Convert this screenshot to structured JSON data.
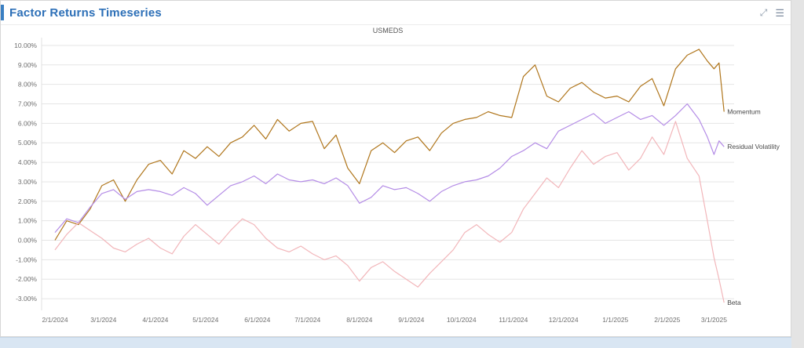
{
  "header": {
    "title": "Factor Returns Timeseries",
    "icons": [
      {
        "name": "expand-icon",
        "glyph": "⤢"
      },
      {
        "name": "menu-icon",
        "glyph": "☰"
      }
    ]
  },
  "colors": {
    "accent_blue": "#3a7fc2",
    "title_blue": "#2c6fb7",
    "grid": "#e5e5e5",
    "momentum": "#b0761c",
    "residual_volatility": "#b48ce6",
    "beta": "#f2b6ba"
  },
  "chart_data": {
    "type": "line",
    "title": "USMEDS",
    "xlabel": "",
    "ylabel": "",
    "grid": "horizontal",
    "legend_position": "line-end-labels",
    "ylim": [
      -3.6,
      10.4
    ],
    "x_unit": "days since 2/1/2024",
    "x_ticks": [
      {
        "day": 0,
        "label": "2/1/2024"
      },
      {
        "day": 29,
        "label": "3/1/2024"
      },
      {
        "day": 60,
        "label": "4/1/2024"
      },
      {
        "day": 90,
        "label": "5/1/2024"
      },
      {
        "day": 121,
        "label": "6/1/2024"
      },
      {
        "day": 151,
        "label": "7/1/2024"
      },
      {
        "day": 182,
        "label": "8/1/2024"
      },
      {
        "day": 213,
        "label": "9/1/2024"
      },
      {
        "day": 243,
        "label": "10/1/2024"
      },
      {
        "day": 274,
        "label": "11/1/2024"
      },
      {
        "day": 304,
        "label": "12/1/2024"
      },
      {
        "day": 335,
        "label": "1/1/2025"
      },
      {
        "day": 366,
        "label": "2/1/2025"
      },
      {
        "day": 394,
        "label": "3/1/2025"
      }
    ],
    "y_ticks": [
      {
        "value": 10,
        "label": "10.00%"
      },
      {
        "value": 9,
        "label": "9.00%"
      },
      {
        "value": 8,
        "label": "8.00%"
      },
      {
        "value": 7,
        "label": "7.00%"
      },
      {
        "value": 6,
        "label": "6.00%"
      },
      {
        "value": 5,
        "label": "5.00%"
      },
      {
        "value": 4,
        "label": "4.00%"
      },
      {
        "value": 3,
        "label": "3.00%"
      },
      {
        "value": 2,
        "label": "2.00%"
      },
      {
        "value": 1,
        "label": "1.00%"
      },
      {
        "value": 0,
        "label": "0.00%"
      },
      {
        "value": -1,
        "label": "-1.00%"
      },
      {
        "value": -2,
        "label": "-2.00%"
      },
      {
        "value": -3,
        "label": "-3.00%"
      }
    ],
    "x": [
      0,
      7,
      14,
      21,
      28,
      35,
      42,
      49,
      56,
      63,
      70,
      77,
      84,
      91,
      98,
      105,
      112,
      119,
      126,
      133,
      140,
      147,
      154,
      161,
      168,
      175,
      182,
      189,
      196,
      203,
      210,
      217,
      224,
      231,
      238,
      245,
      252,
      259,
      266,
      273,
      280,
      287,
      294,
      301,
      308,
      315,
      322,
      329,
      336,
      343,
      350,
      357,
      364,
      371,
      378,
      385,
      390,
      394,
      397,
      400
    ],
    "series": [
      {
        "name": "Momentum",
        "color": "#b0761c",
        "values": [
          0.0,
          1.0,
          0.8,
          1.6,
          2.8,
          3.1,
          2.0,
          3.1,
          3.9,
          4.1,
          3.4,
          4.6,
          4.2,
          4.8,
          4.3,
          5.0,
          5.3,
          5.9,
          5.2,
          6.2,
          5.6,
          6.0,
          6.1,
          4.7,
          5.4,
          3.7,
          2.9,
          4.6,
          5.0,
          4.5,
          5.1,
          5.3,
          4.6,
          5.5,
          6.0,
          6.2,
          6.3,
          6.6,
          6.4,
          6.3,
          8.4,
          9.0,
          7.4,
          7.1,
          7.8,
          8.1,
          7.6,
          7.3,
          7.4,
          7.1,
          7.9,
          8.3,
          6.9,
          8.8,
          9.5,
          9.8,
          9.2,
          8.8,
          9.1,
          6.6
        ]
      },
      {
        "name": "Residual Volatility",
        "color": "#b48ce6",
        "values": [
          0.4,
          1.1,
          0.9,
          1.7,
          2.4,
          2.6,
          2.1,
          2.5,
          2.6,
          2.5,
          2.3,
          2.7,
          2.4,
          1.8,
          2.3,
          2.8,
          3.0,
          3.3,
          2.9,
          3.4,
          3.1,
          3.0,
          3.1,
          2.9,
          3.2,
          2.8,
          1.9,
          2.2,
          2.8,
          2.6,
          2.7,
          2.4,
          2.0,
          2.5,
          2.8,
          3.0,
          3.1,
          3.3,
          3.7,
          4.3,
          4.6,
          5.0,
          4.7,
          5.6,
          5.9,
          6.2,
          6.5,
          6.0,
          6.3,
          6.6,
          6.2,
          6.4,
          5.9,
          6.4,
          7.0,
          6.2,
          5.3,
          4.4,
          5.1,
          4.8
        ]
      },
      {
        "name": "Beta",
        "color": "#f2b6ba",
        "values": [
          -0.5,
          0.3,
          0.9,
          0.5,
          0.1,
          -0.4,
          -0.6,
          -0.2,
          0.1,
          -0.4,
          -0.7,
          0.2,
          0.8,
          0.3,
          -0.2,
          0.5,
          1.1,
          0.8,
          0.1,
          -0.4,
          -0.6,
          -0.3,
          -0.7,
          -1.0,
          -0.8,
          -1.3,
          -2.1,
          -1.4,
          -1.1,
          -1.6,
          -2.0,
          -2.4,
          -1.7,
          -1.1,
          -0.5,
          0.4,
          0.8,
          0.3,
          -0.1,
          0.4,
          1.6,
          2.4,
          3.2,
          2.7,
          3.7,
          4.6,
          3.9,
          4.3,
          4.5,
          3.6,
          4.2,
          5.3,
          4.4,
          6.1,
          4.2,
          3.3,
          1.0,
          -0.9,
          -2.0,
          -3.2
        ]
      }
    ]
  }
}
